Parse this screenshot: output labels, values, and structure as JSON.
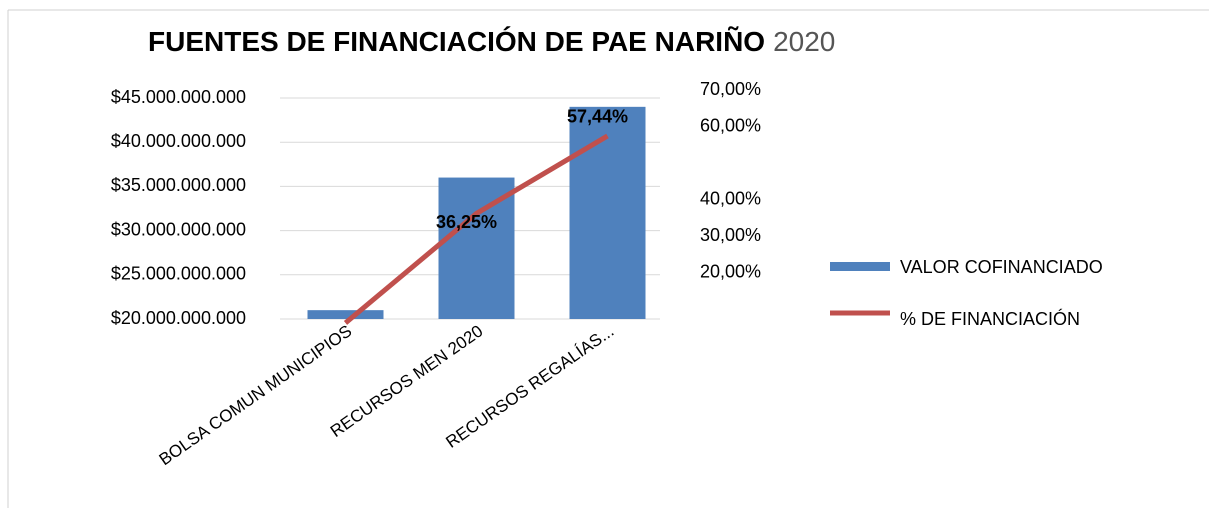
{
  "chart_data": {
    "type": "bar_line",
    "title": "FUENTES DE FINANCIACIÓN DE PAE NARIÑO",
    "title_suffix": "2020",
    "categories": [
      "BOLSA COMUN MUNICIPIOS",
      "RECURSOS MEN 2020",
      "RECURSOS REGALÍAS..."
    ],
    "series": [
      {
        "name": "VALOR COFINANCIADO",
        "color": "#4f81bd",
        "type": "bar",
        "values": [
          21000000000,
          36000000000,
          44000000000
        ]
      },
      {
        "name": "% DE FINANCIACIÓN",
        "color": "#c0504d",
        "type": "line",
        "axis": "y2",
        "values": [
          6.31,
          36.25,
          57.44
        ],
        "value_labels": [
          null,
          "36,25%",
          "57,44%"
        ]
      }
    ],
    "ylim": [
      20000000000,
      45000000000
    ],
    "yticks": [
      {
        "value": 45000000000,
        "label": "$45.000.000.000"
      },
      {
        "value": 40000000000,
        "label": "$40.000.000.000"
      },
      {
        "value": 35000000000,
        "label": "$35.000.000.000"
      },
      {
        "value": 30000000000,
        "label": "$30.000.000.000"
      },
      {
        "value": 25000000000,
        "label": "$25.000.000.000"
      },
      {
        "value": 20000000000,
        "label": "$20.000.000.000"
      }
    ],
    "y2lim": [
      0,
      70
    ],
    "y2ticks": [
      {
        "value": 70,
        "label": "70,00%"
      },
      {
        "value": 60,
        "label": "60,00%"
      },
      {
        "value": 40,
        "label": "40,00%"
      },
      {
        "value": 30,
        "label": "30,00%"
      },
      {
        "value": 20,
        "label": "20,00%"
      }
    ],
    "grid": true
  }
}
